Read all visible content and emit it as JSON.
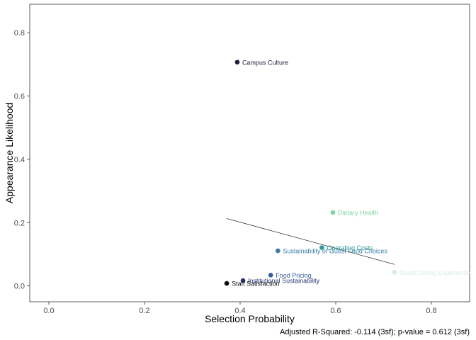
{
  "chart_data": {
    "type": "scatter",
    "title": "",
    "xlabel": "Selection Probability",
    "ylabel": "Appearance Likelihood",
    "xlim": [
      -0.04,
      0.88
    ],
    "ylim": [
      -0.05,
      0.89
    ],
    "x_ticks": [
      0.0,
      0.2,
      0.4,
      0.6,
      0.8
    ],
    "x_tick_labels": [
      "0.0",
      "0.2",
      "0.4",
      "0.6",
      "0.8"
    ],
    "y_ticks": [
      0.0,
      0.2,
      0.4,
      0.6,
      0.8
    ],
    "y_tick_labels": [
      "0.0",
      "0.2",
      "0.4",
      "0.6",
      "0.8"
    ],
    "grid": false,
    "points": [
      {
        "label": "Campus Culture",
        "x": 0.394,
        "y": 0.707,
        "color": "#1e1c40"
      },
      {
        "label": "Dietary Health",
        "x": 0.594,
        "y": 0.232,
        "color": "#7ed3a0"
      },
      {
        "label": "Operating Costs",
        "x": 0.571,
        "y": 0.121,
        "color": "#2d9c9b"
      },
      {
        "label": "Sustainability of Guest Food Choices",
        "x": 0.479,
        "y": 0.111,
        "color": "#3a7ea6"
      },
      {
        "label": "Guest Dining Experience",
        "x": 0.723,
        "y": 0.043,
        "color": "#d2f0de"
      },
      {
        "label": "Food Pricing",
        "x": 0.464,
        "y": 0.034,
        "color": "#385c9a"
      },
      {
        "label": "Institutional Sustainability",
        "x": 0.406,
        "y": 0.017,
        "color": "#2d3470"
      },
      {
        "label": "Staff Satisfaction",
        "x": 0.372,
        "y": 0.008,
        "color": "#0a0a12"
      }
    ],
    "trend_line": {
      "x": [
        0.372,
        0.723
      ],
      "y": [
        0.213,
        0.068
      ],
      "color": "#333333"
    },
    "caption": "Adjusted R-Squared: -0.114 (3sf); p-value = 0.612 (3sf)"
  }
}
